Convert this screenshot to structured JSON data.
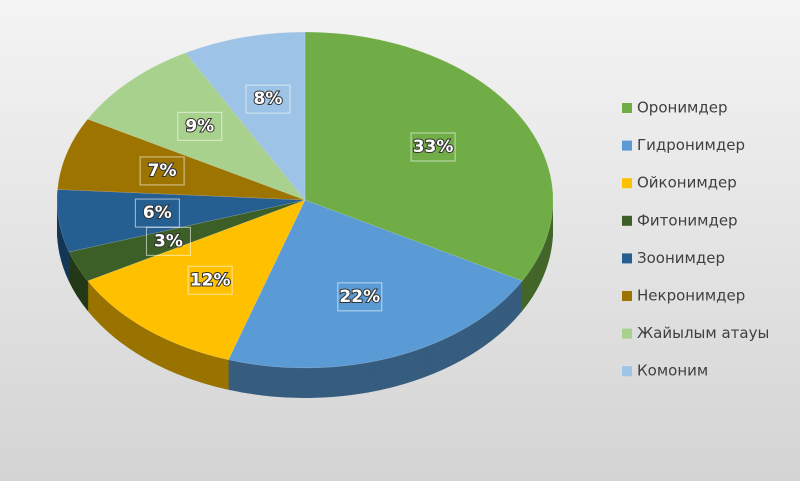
{
  "chart_data": {
    "type": "pie",
    "categories": [
      "Оронимдер",
      "Гидронимдер",
      "Ойконимдер",
      "Фитонимдер",
      "Зоонимдер",
      "Некронимдер",
      "Жайылым атауы",
      "Комоним"
    ],
    "values": [
      33,
      22,
      12,
      3,
      6,
      7,
      9,
      8
    ],
    "value_labels": [
      "33%",
      "22%",
      "12%",
      "3%",
      "6%",
      "7%",
      "9%",
      "8%"
    ],
    "colors": [
      "#70ad47",
      "#5b9bd5",
      "#ffc000",
      "#3b5f27",
      "#255e91",
      "#9e7400",
      "#a9d18e",
      "#9dc3e6"
    ],
    "legend": "right"
  }
}
